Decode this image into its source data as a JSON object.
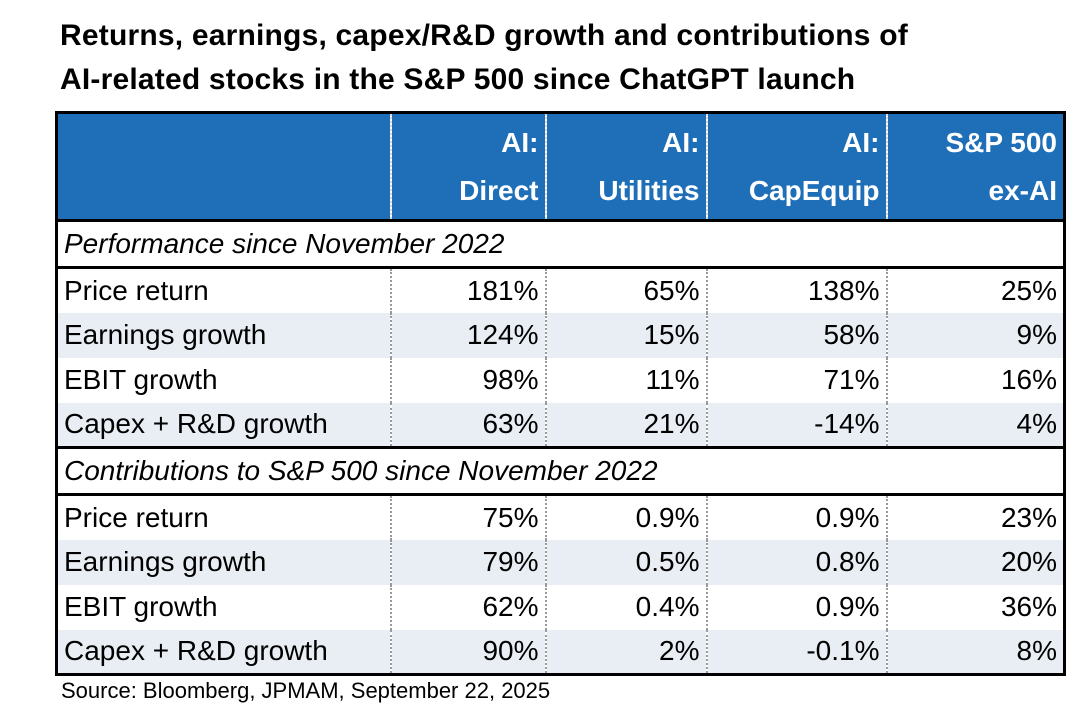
{
  "title": {
    "line1": "Returns, earnings, capex/R&D growth and contributions of",
    "line2": "AI-related stocks in the S&P 500 since ChatGPT launch"
  },
  "table": {
    "headers": [
      {
        "line1": "AI:",
        "line2": "Direct"
      },
      {
        "line1": "AI:",
        "line2": "Utilities"
      },
      {
        "line1": "AI:",
        "line2": "CapEquip"
      },
      {
        "line1": "S&P 500",
        "line2": "ex-AI"
      }
    ],
    "sections": [
      {
        "title": "Performance since November 2022",
        "rows": [
          {
            "label": "Price return",
            "values": [
              "181%",
              "65%",
              "138%",
              "25%"
            ]
          },
          {
            "label": "Earnings growth",
            "values": [
              "124%",
              "15%",
              "58%",
              "9%"
            ]
          },
          {
            "label": "EBIT growth",
            "values": [
              "98%",
              "11%",
              "71%",
              "16%"
            ]
          },
          {
            "label": "Capex + R&D growth",
            "values": [
              "63%",
              "21%",
              "-14%",
              "4%"
            ]
          }
        ]
      },
      {
        "title": "Contributions to S&P 500 since November 2022",
        "rows": [
          {
            "label": "Price return",
            "values": [
              "75%",
              "0.9%",
              "0.9%",
              "23%"
            ]
          },
          {
            "label": "Earnings growth",
            "values": [
              "79%",
              "0.5%",
              "0.8%",
              "20%"
            ]
          },
          {
            "label": "EBIT growth",
            "values": [
              "62%",
              "0.4%",
              "0.9%",
              "36%"
            ]
          },
          {
            "label": "Capex + R&D growth",
            "values": [
              "90%",
              "2%",
              "-0.1%",
              "8%"
            ]
          }
        ]
      }
    ]
  },
  "source": "Source: Bloomberg, JPMAM, September 22, 2025",
  "colors": {
    "header_bg": "#1f6fb8",
    "alt_row": "#e8eef3"
  }
}
